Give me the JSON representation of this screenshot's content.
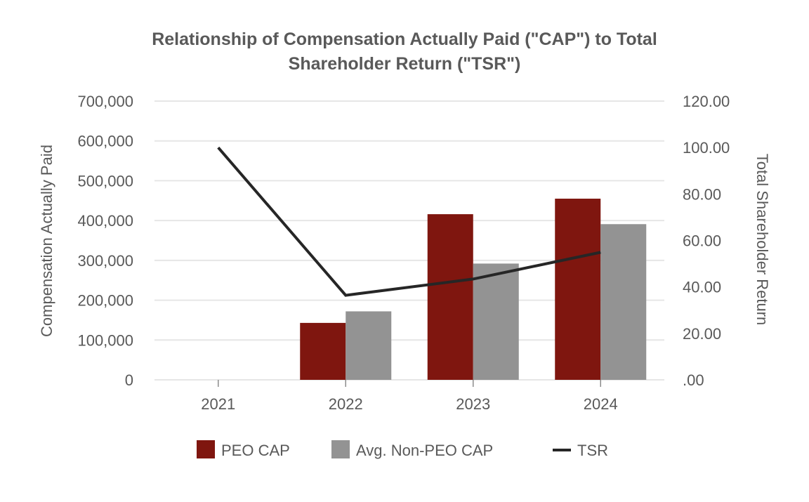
{
  "chart_data": {
    "type": "bar",
    "title_lines": [
      "Relationship of Compensation Actually Paid (\"CAP\") to Total",
      "Shareholder Return (\"TSR\")"
    ],
    "categories": [
      "2021",
      "2022",
      "2023",
      "2024"
    ],
    "series": [
      {
        "name": "PEO CAP",
        "type": "bar",
        "axis": "left",
        "color": "#7f160f",
        "values": [
          null,
          143000,
          416000,
          455000
        ]
      },
      {
        "name": "Avg. Non-PEO CAP",
        "type": "bar",
        "axis": "left",
        "color": "#939393",
        "values": [
          null,
          172000,
          292000,
          391000
        ]
      },
      {
        "name": "TSR",
        "type": "line",
        "axis": "right",
        "color": "#262626",
        "values": [
          100.0,
          36.4,
          43.4,
          54.9
        ]
      }
    ],
    "ylabel": "Compensation Actually Paid",
    "y2label": "Total Shareholder Return",
    "ylim": [
      0,
      700000
    ],
    "y2lim": [
      0,
      120
    ],
    "yticks": [
      "0",
      "100,000",
      "200,000",
      "300,000",
      "400,000",
      "500,000",
      "600,000",
      "700,000"
    ],
    "y2ticks": [
      ".00",
      "20.00",
      "40.00",
      "60.00",
      "80.00",
      "100.00",
      "120.00"
    ],
    "grid": true,
    "legend_position": "bottom"
  }
}
